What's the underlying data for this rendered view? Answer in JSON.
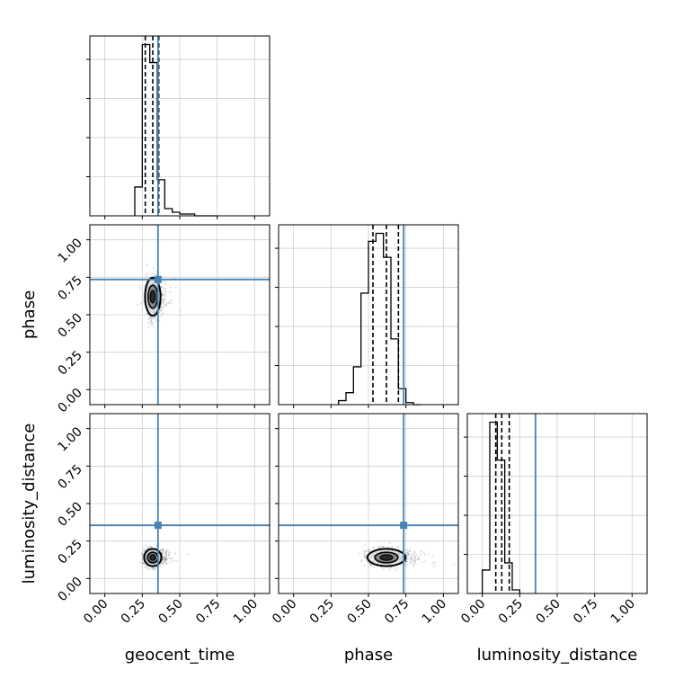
{
  "chart_data": {
    "type": "corner",
    "parameters": [
      "geocent_time",
      "phase",
      "luminosity_distance"
    ],
    "axis_range": [
      -0.1,
      1.1
    ],
    "ticks": [
      0.0,
      0.25,
      0.5,
      0.75,
      1.0
    ],
    "tick_labels": [
      "0.00",
      "0.25",
      "0.50",
      "0.75",
      "1.00"
    ],
    "truths": [
      0.355,
      0.735,
      0.355
    ],
    "truth_color": "#4682b4",
    "grid": true,
    "histograms": [
      {
        "parameter": "geocent_time",
        "bins": [
          0.2,
          0.25,
          0.3,
          0.35,
          0.4,
          0.45,
          0.5,
          0.55,
          0.6,
          0.75
        ],
        "counts": [
          0.16,
          0.95,
          0.85,
          0.2,
          0.04,
          0.02,
          0.01,
          0.01,
          0.0
        ],
        "quantiles": [
          0.27,
          0.32,
          0.36
        ]
      },
      {
        "parameter": "phase",
        "bins": [
          0.3,
          0.35,
          0.4,
          0.45,
          0.5,
          0.55,
          0.6,
          0.65,
          0.7,
          0.75,
          0.8,
          0.85
        ],
        "counts": [
          0.02,
          0.06,
          0.19,
          0.56,
          0.82,
          0.86,
          0.74,
          0.33,
          0.08,
          0.01,
          0.0
        ],
        "quantiles": [
          0.53,
          0.62,
          0.7
        ]
      },
      {
        "parameter": "luminosity_distance",
        "bins": [
          0.0,
          0.05,
          0.1,
          0.15,
          0.2,
          0.25
        ],
        "counts": [
          0.13,
          0.95,
          0.74,
          0.17,
          0.02
        ],
        "quantiles": [
          0.09,
          0.13,
          0.18
        ]
      }
    ],
    "scatter_panels": [
      {
        "x": "geocent_time",
        "y": "phase",
        "center": [
          0.32,
          0.62
        ],
        "spread": [
          0.045,
          0.11
        ]
      },
      {
        "x": "geocent_time",
        "y": "luminosity_distance",
        "center": [
          0.32,
          0.14
        ],
        "spread": [
          0.05,
          0.05
        ]
      },
      {
        "x": "phase",
        "y": "luminosity_distance",
        "center": [
          0.62,
          0.14
        ],
        "spread": [
          0.11,
          0.05
        ]
      }
    ]
  }
}
